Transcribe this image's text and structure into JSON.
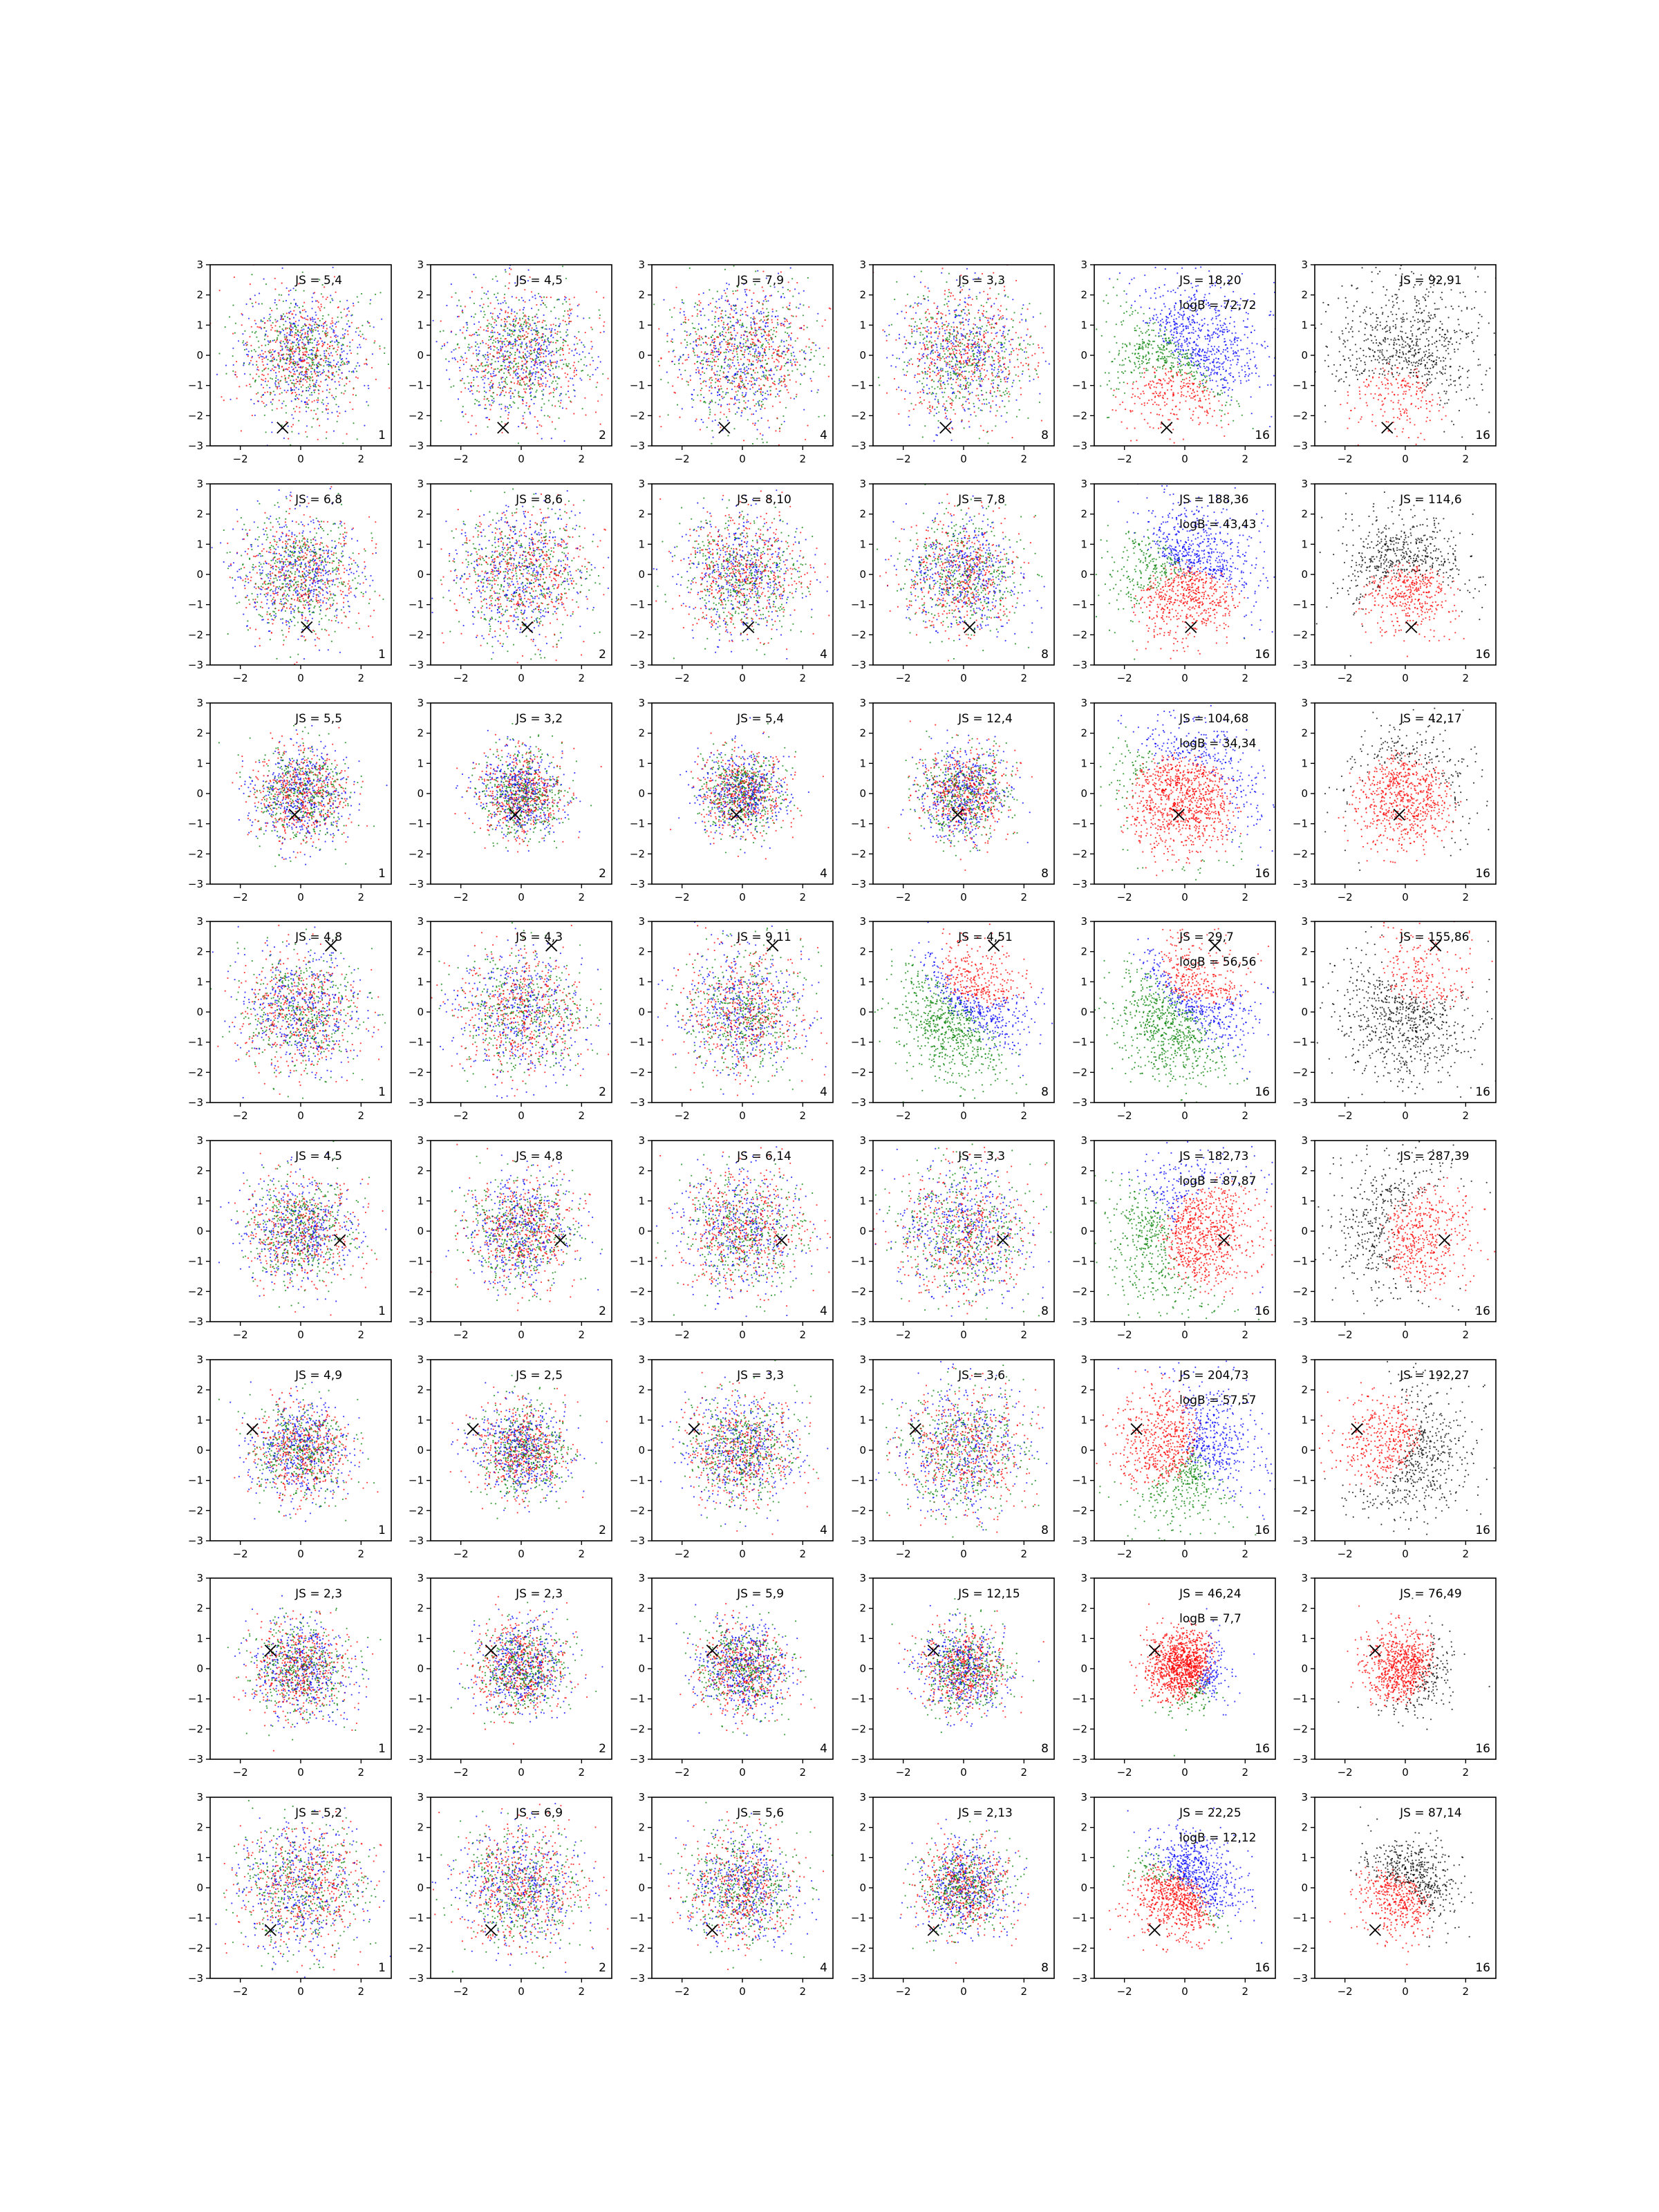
{
  "figure": {
    "layout": {
      "rows": 8,
      "cols": 6
    },
    "axes": {
      "xlim": [
        -3,
        3
      ],
      "ylim": [
        -3,
        3
      ],
      "xticks": [
        -2,
        0,
        2
      ],
      "xtick_labels": [
        "−2",
        "0",
        "2"
      ],
      "yticks": [
        -3,
        -2,
        -1,
        0,
        1,
        2,
        3
      ],
      "ytick_labels": [
        "−3",
        "−2",
        "−1",
        "0",
        "1",
        "2",
        "3"
      ],
      "grid": false
    },
    "colors": {
      "red": "#ff0000",
      "green": "#008000",
      "blue": "#0000ff",
      "black": "#000000",
      "axis": "#000000"
    }
  },
  "chart_data": [
    {
      "row": 1,
      "col": 1,
      "type": "scatter",
      "annotation": "JS = 5,4",
      "corner_label": "1",
      "marker": {
        "x": -0.6,
        "y": -2.4
      },
      "density": "mixed-rgb",
      "spread": 1.05
    },
    {
      "row": 1,
      "col": 2,
      "type": "scatter",
      "annotation": "JS = 4,5",
      "corner_label": "2",
      "marker": {
        "x": -0.6,
        "y": -2.4
      },
      "density": "mixed-rgb",
      "spread": 1.1
    },
    {
      "row": 1,
      "col": 3,
      "type": "scatter",
      "annotation": "JS = 7,9",
      "corner_label": "4",
      "marker": {
        "x": -0.6,
        "y": -2.4
      },
      "density": "mixed-rgb",
      "spread": 1.15
    },
    {
      "row": 1,
      "col": 4,
      "type": "scatter",
      "annotation": "JS = 3,3",
      "corner_label": "8",
      "marker": {
        "x": -0.6,
        "y": -2.4
      },
      "density": "mixed-rgb",
      "spread": 1.1
    },
    {
      "row": 1,
      "col": 5,
      "type": "scatter",
      "annotation": "JS = 18,20",
      "annotation2": "logB = 72,72",
      "corner_label": "16",
      "marker": {
        "x": -0.6,
        "y": -2.4
      },
      "density": "regions-rgb",
      "spread": 1.2
    },
    {
      "row": 1,
      "col": 6,
      "type": "scatter",
      "annotation": "JS = 92,91",
      "corner_label": "16",
      "marker": {
        "x": -0.6,
        "y": -2.4
      },
      "density": "regions-rk",
      "spread": 1.2
    },
    {
      "row": 2,
      "col": 1,
      "type": "scatter",
      "annotation": "JS = 6,8",
      "corner_label": "1",
      "marker": {
        "x": 0.2,
        "y": -1.75
      },
      "density": "mixed-rgb",
      "spread": 1.0
    },
    {
      "row": 2,
      "col": 2,
      "type": "scatter",
      "annotation": "JS = 8,6",
      "corner_label": "2",
      "marker": {
        "x": 0.2,
        "y": -1.75
      },
      "density": "mixed-rgb",
      "spread": 1.1
    },
    {
      "row": 2,
      "col": 3,
      "type": "scatter",
      "annotation": "JS = 8,10",
      "corner_label": "4",
      "marker": {
        "x": 0.2,
        "y": -1.75
      },
      "density": "mixed-rgb",
      "spread": 1.0
    },
    {
      "row": 2,
      "col": 4,
      "type": "scatter",
      "annotation": "JS = 7,8",
      "corner_label": "8",
      "marker": {
        "x": 0.2,
        "y": -1.75
      },
      "density": "mixed-rgb",
      "spread": 0.95
    },
    {
      "row": 2,
      "col": 5,
      "type": "scatter",
      "annotation": "JS = 188,36",
      "annotation2": "logB = 43,43",
      "corner_label": "16",
      "marker": {
        "x": 0.2,
        "y": -1.75
      },
      "density": "regions-rgb",
      "spread": 1.05
    },
    {
      "row": 2,
      "col": 6,
      "type": "scatter",
      "annotation": "JS = 114,6",
      "corner_label": "16",
      "marker": {
        "x": 0.2,
        "y": -1.75
      },
      "density": "regions-rk",
      "spread": 0.95
    },
    {
      "row": 3,
      "col": 1,
      "type": "scatter",
      "annotation": "JS = 5,5",
      "corner_label": "1",
      "marker": {
        "x": -0.2,
        "y": -0.7
      },
      "density": "mixed-rgb",
      "spread": 0.8
    },
    {
      "row": 3,
      "col": 2,
      "type": "scatter",
      "annotation": "JS = 3,2",
      "corner_label": "2",
      "marker": {
        "x": -0.2,
        "y": -0.7
      },
      "density": "mixed-rgb",
      "spread": 0.7
    },
    {
      "row": 3,
      "col": 3,
      "type": "scatter",
      "annotation": "JS = 5,4",
      "corner_label": "4",
      "marker": {
        "x": -0.2,
        "y": -0.7
      },
      "density": "mixed-rgb",
      "spread": 0.7
    },
    {
      "row": 3,
      "col": 4,
      "type": "scatter",
      "annotation": "JS = 12,4",
      "corner_label": "8",
      "marker": {
        "x": -0.2,
        "y": -0.7
      },
      "density": "mixed-rgb",
      "spread": 0.75
    },
    {
      "row": 3,
      "col": 5,
      "type": "scatter",
      "annotation": "JS = 104,68",
      "annotation2": "logB = 34,34",
      "corner_label": "16",
      "marker": {
        "x": -0.2,
        "y": -0.7
      },
      "density": "regions-rgb",
      "spread": 1.05
    },
    {
      "row": 3,
      "col": 6,
      "type": "scatter",
      "annotation": "JS = 42,17",
      "corner_label": "16",
      "marker": {
        "x": -0.2,
        "y": -0.7
      },
      "density": "regions-rk",
      "spread": 0.95
    },
    {
      "row": 4,
      "col": 1,
      "type": "scatter",
      "annotation": "JS = 4,8",
      "corner_label": "1",
      "marker": {
        "x": 1.0,
        "y": 2.2
      },
      "density": "mixed-rgb",
      "spread": 1.0
    },
    {
      "row": 4,
      "col": 2,
      "type": "scatter",
      "annotation": "JS = 4,3",
      "corner_label": "2",
      "marker": {
        "x": 1.0,
        "y": 2.2
      },
      "density": "mixed-rgb",
      "spread": 1.05
    },
    {
      "row": 4,
      "col": 3,
      "type": "scatter",
      "annotation": "JS = 9,11",
      "corner_label": "4",
      "marker": {
        "x": 1.0,
        "y": 2.2
      },
      "density": "mixed-rgb",
      "spread": 1.0
    },
    {
      "row": 4,
      "col": 4,
      "type": "scatter",
      "annotation": "JS = 4,51",
      "corner_label": "8",
      "marker": {
        "x": 1.0,
        "y": 2.2
      },
      "density": "regions-rgb",
      "spread": 1.05
    },
    {
      "row": 4,
      "col": 5,
      "type": "scatter",
      "annotation": "JS = 29,7",
      "annotation2": "logB = 56,56",
      "corner_label": "16",
      "marker": {
        "x": 1.0,
        "y": 2.2
      },
      "density": "regions-rgb",
      "spread": 1.1
    },
    {
      "row": 4,
      "col": 6,
      "type": "scatter",
      "annotation": "JS = 155,86",
      "corner_label": "16",
      "marker": {
        "x": 1.0,
        "y": 2.2
      },
      "density": "regions-rk",
      "spread": 1.1
    },
    {
      "row": 5,
      "col": 1,
      "type": "scatter",
      "annotation": "JS = 4,5",
      "corner_label": "1",
      "marker": {
        "x": 1.3,
        "y": -0.3
      },
      "density": "mixed-rgb",
      "spread": 0.9
    },
    {
      "row": 5,
      "col": 2,
      "type": "scatter",
      "annotation": "JS = 4,8",
      "corner_label": "2",
      "marker": {
        "x": 1.3,
        "y": -0.3
      },
      "density": "mixed-rgb",
      "spread": 0.9
    },
    {
      "row": 5,
      "col": 3,
      "type": "scatter",
      "annotation": "JS = 6,14",
      "corner_label": "4",
      "marker": {
        "x": 1.3,
        "y": -0.3
      },
      "density": "mixed-rgb",
      "spread": 1.0
    },
    {
      "row": 5,
      "col": 4,
      "type": "scatter",
      "annotation": "JS = 3,3",
      "corner_label": "8",
      "marker": {
        "x": 1.3,
        "y": -0.3
      },
      "density": "mixed-rgb",
      "spread": 1.1
    },
    {
      "row": 5,
      "col": 5,
      "type": "scatter",
      "annotation": "JS = 182,73",
      "annotation2": "logB = 87,87",
      "corner_label": "16",
      "marker": {
        "x": 1.3,
        "y": -0.3
      },
      "density": "regions-rgb",
      "spread": 1.15
    },
    {
      "row": 5,
      "col": 6,
      "type": "scatter",
      "annotation": "JS = 287,39",
      "corner_label": "16",
      "marker": {
        "x": 1.3,
        "y": -0.3
      },
      "density": "regions-rk",
      "spread": 1.15
    },
    {
      "row": 6,
      "col": 1,
      "type": "scatter",
      "annotation": "JS = 4,9",
      "corner_label": "1",
      "marker": {
        "x": -1.6,
        "y": 0.7
      },
      "density": "mixed-rgb",
      "spread": 0.8
    },
    {
      "row": 6,
      "col": 2,
      "type": "scatter",
      "annotation": "JS = 2,5",
      "corner_label": "2",
      "marker": {
        "x": -1.6,
        "y": 0.7
      },
      "density": "mixed-rgb",
      "spread": 0.75
    },
    {
      "row": 6,
      "col": 3,
      "type": "scatter",
      "annotation": "JS = 3,3",
      "corner_label": "4",
      "marker": {
        "x": -1.6,
        "y": 0.7
      },
      "density": "mixed-rgb",
      "spread": 0.9
    },
    {
      "row": 6,
      "col": 4,
      "type": "scatter",
      "annotation": "JS = 3,6",
      "corner_label": "8",
      "marker": {
        "x": -1.6,
        "y": 0.7
      },
      "density": "mixed-rgb",
      "spread": 1.05
    },
    {
      "row": 6,
      "col": 5,
      "type": "scatter",
      "annotation": "JS = 204,73",
      "annotation2": "logB = 57,57",
      "corner_label": "16",
      "marker": {
        "x": -1.6,
        "y": 0.7
      },
      "density": "regions-rgb",
      "spread": 1.1
    },
    {
      "row": 6,
      "col": 6,
      "type": "scatter",
      "annotation": "JS = 192,27",
      "corner_label": "16",
      "marker": {
        "x": -1.6,
        "y": 0.7
      },
      "density": "regions-rk",
      "spread": 1.05
    },
    {
      "row": 7,
      "col": 1,
      "type": "scatter",
      "annotation": "JS = 2,3",
      "corner_label": "1",
      "marker": {
        "x": -1.0,
        "y": 0.6
      },
      "density": "mixed-rgb",
      "spread": 0.8
    },
    {
      "row": 7,
      "col": 2,
      "type": "scatter",
      "annotation": "JS = 2,3",
      "corner_label": "2",
      "marker": {
        "x": -1.0,
        "y": 0.6
      },
      "density": "mixed-rgb",
      "spread": 0.75
    },
    {
      "row": 7,
      "col": 3,
      "type": "scatter",
      "annotation": "JS = 5,9",
      "corner_label": "4",
      "marker": {
        "x": -1.0,
        "y": 0.6
      },
      "density": "mixed-rgb",
      "spread": 0.75
    },
    {
      "row": 7,
      "col": 4,
      "type": "scatter",
      "annotation": "JS = 12,15",
      "corner_label": "8",
      "marker": {
        "x": -1.0,
        "y": 0.6
      },
      "density": "mixed-rgb",
      "spread": 0.7
    },
    {
      "row": 7,
      "col": 5,
      "type": "scatter",
      "annotation": "JS = 46,24",
      "annotation2": "logB = 7,7",
      "corner_label": "16",
      "marker": {
        "x": -1.0,
        "y": 0.6
      },
      "density": "regions-rgb",
      "spread": 0.6
    },
    {
      "row": 7,
      "col": 6,
      "type": "scatter",
      "annotation": "JS = 76,49",
      "corner_label": "16",
      "marker": {
        "x": -1.0,
        "y": 0.6
      },
      "density": "regions-rk",
      "spread": 0.65
    },
    {
      "row": 8,
      "col": 1,
      "type": "scatter",
      "annotation": "JS = 5,2",
      "corner_label": "1",
      "marker": {
        "x": -1.0,
        "y": -1.4
      },
      "density": "mixed-rgb",
      "spread": 1.05
    },
    {
      "row": 8,
      "col": 2,
      "type": "scatter",
      "annotation": "JS = 6,9",
      "corner_label": "2",
      "marker": {
        "x": -1.0,
        "y": -1.4
      },
      "density": "mixed-rgb",
      "spread": 1.0
    },
    {
      "row": 8,
      "col": 3,
      "type": "scatter",
      "annotation": "JS = 5,6",
      "corner_label": "4",
      "marker": {
        "x": -1.0,
        "y": -1.4
      },
      "density": "mixed-rgb",
      "spread": 0.9
    },
    {
      "row": 8,
      "col": 4,
      "type": "scatter",
      "annotation": "JS = 2,13",
      "corner_label": "8",
      "marker": {
        "x": -1.0,
        "y": -1.4
      },
      "density": "mixed-rgb",
      "spread": 0.75
    },
    {
      "row": 8,
      "col": 5,
      "type": "scatter",
      "annotation": "JS = 22,25",
      "annotation2": "logB = 12,12",
      "corner_label": "16",
      "marker": {
        "x": -1.0,
        "y": -1.4
      },
      "density": "regions-rgb",
      "spread": 0.8
    },
    {
      "row": 8,
      "col": 6,
      "type": "scatter",
      "annotation": "JS = 87,14",
      "corner_label": "16",
      "marker": {
        "x": -1.0,
        "y": -1.4
      },
      "density": "regions-rk",
      "spread": 0.75
    }
  ]
}
